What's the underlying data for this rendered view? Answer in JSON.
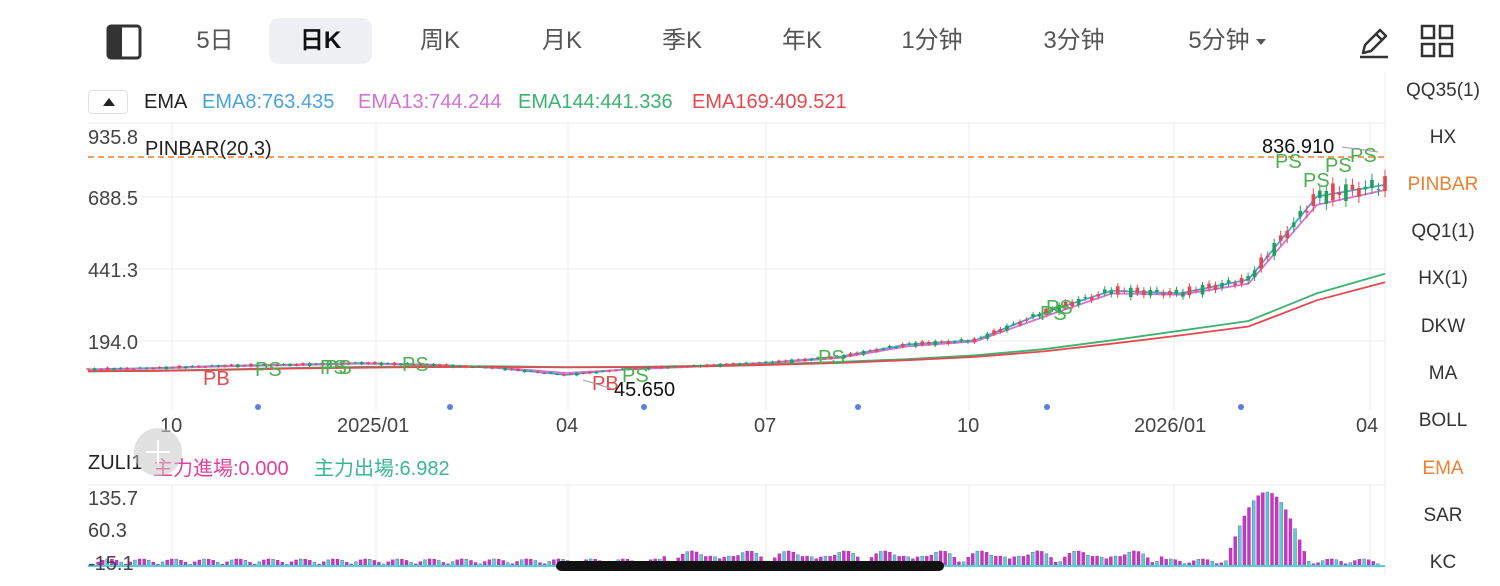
{
  "tabs": [
    {
      "label": "5日"
    },
    {
      "label": "日K"
    },
    {
      "label": "周K"
    },
    {
      "label": "月K"
    },
    {
      "label": "季K"
    },
    {
      "label": "年K"
    },
    {
      "label": "1分钟"
    },
    {
      "label": "3分钟"
    },
    {
      "label": "5分钟"
    }
  ],
  "active_tab": "日K",
  "icons": {
    "layout": "sidebar-toggle-icon",
    "draw": "pencil-icon",
    "grid": "grid-icon",
    "dropdown": "caret-down-icon"
  },
  "colors": {
    "ema8": "#4aa3df",
    "ema13": "#d472d4",
    "ema144": "#3cb371",
    "ema169": "#e5484d",
    "up": "#e5484d",
    "down": "#22a05a",
    "ps": "#4caf50",
    "pb": "#e5484d",
    "inflow": "#e0419c",
    "outflow": "#3ab795",
    "hist_magenta": "#cc33cc",
    "hist_cyan": "#4fd1d9",
    "active": "#ee7f2f"
  },
  "ema_header": {
    "name": "EMA",
    "ema8": "EMA8:763.435",
    "ema13": "EMA13:744.244",
    "ema144": "EMA144:441.336",
    "ema169": "EMA169:409.521"
  },
  "main_chart": {
    "indicator": "PINBAR(20,3)",
    "y_ticks": [
      "935.8",
      "688.5",
      "441.3",
      "194.0"
    ],
    "x_ticks": [
      "10",
      "2025/01",
      "04",
      "07",
      "10",
      "2026/01",
      "04"
    ],
    "high_label": "836.910",
    "low_label": "45.650",
    "signal_labels": [
      "PS",
      "PB",
      "PS",
      "PS",
      "PS",
      "PS",
      "PB",
      "PS",
      "PS",
      "PS",
      "PS",
      "PS",
      "PS",
      "PS"
    ]
  },
  "zuli": {
    "name": "ZULI1",
    "inflow": "主力進場:0.000",
    "outflow": "主力出場:6.982",
    "y_ticks": [
      "135.7",
      "60.3",
      "-15.1"
    ]
  },
  "right_panel": {
    "items": [
      "QQ35(1)",
      "HX",
      "PINBAR",
      "QQ1(1)",
      "HX(1)",
      "DKW",
      "MA",
      "BOLL",
      "EMA",
      "SAR",
      "KC"
    ],
    "active": [
      "PINBAR",
      "EMA"
    ]
  },
  "chart_data": {
    "type": "line",
    "title": "",
    "x": [
      "2024-09",
      "2024-10",
      "2024-11",
      "2024-12",
      "2025-01",
      "2025-02",
      "2025-03",
      "2025-04",
      "2025-05",
      "2025-06",
      "2025-07",
      "2025-08",
      "2025-09",
      "2025-10",
      "2025-11",
      "2025-12",
      "2026-01",
      "2026-02",
      "2026-03",
      "2026-04"
    ],
    "series": [
      {
        "name": "EMA8",
        "values": [
          95,
          100,
          108,
          112,
          118,
          112,
          100,
          75,
          98,
          108,
          120,
          140,
          185,
          200,
          300,
          380,
          370,
          420,
          720,
          763
        ]
      },
      {
        "name": "EMA13",
        "values": [
          93,
          98,
          106,
          110,
          116,
          112,
          102,
          82,
          96,
          106,
          118,
          136,
          178,
          196,
          285,
          370,
          365,
          405,
          690,
          744
        ]
      },
      {
        "name": "EMA144",
        "values": [
          88,
          90,
          95,
          100,
          104,
          106,
          106,
          103,
          104,
          108,
          114,
          122,
          132,
          146,
          168,
          200,
          235,
          270,
          370,
          441
        ]
      },
      {
        "name": "EMA169",
        "values": [
          88,
          89,
          93,
          98,
          101,
          103,
          104,
          102,
          103,
          106,
          111,
          118,
          128,
          140,
          160,
          188,
          218,
          250,
          345,
          410
        ]
      }
    ],
    "price_high": 836.91,
    "price_low": 45.65,
    "ylim": [
      -30,
      935.8
    ],
    "y_ticks": [
      935.8,
      688.5,
      441.3,
      194.0
    ],
    "grid": true,
    "zuli_ylim": [
      -15.1,
      135.7
    ],
    "zuli_peak": 135.7
  }
}
